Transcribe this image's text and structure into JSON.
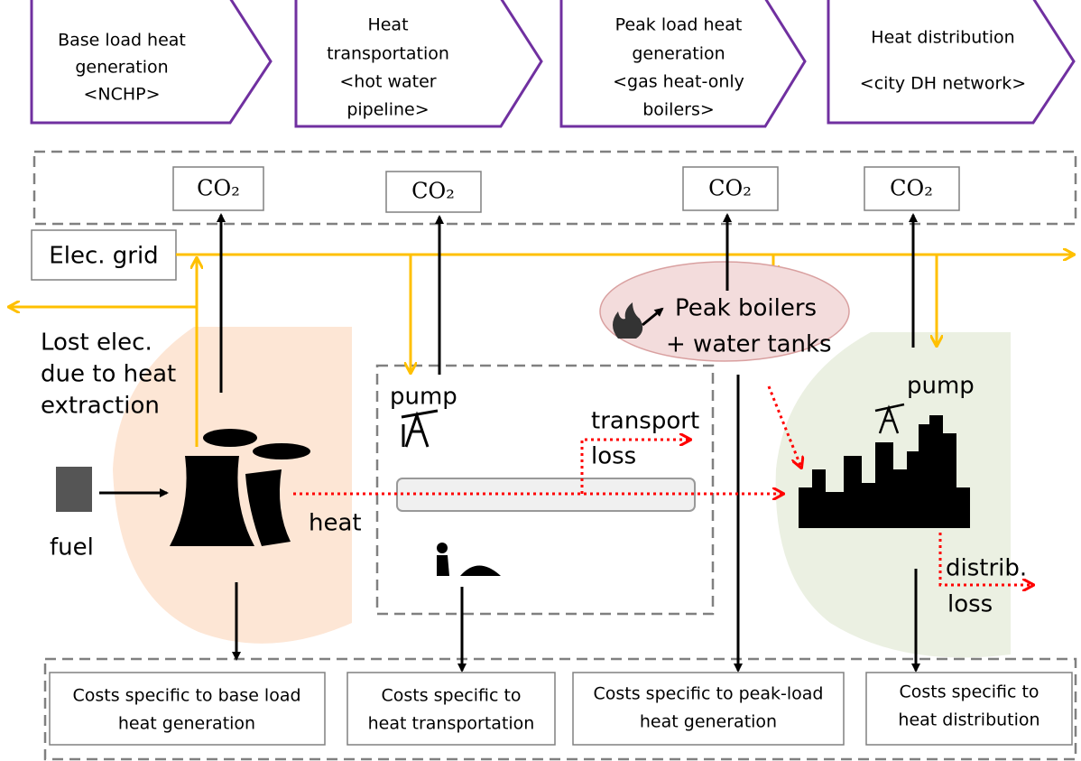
{
  "stages": [
    {
      "lines": [
        "Base load heat",
        "generation",
        "<NCHP>"
      ]
    },
    {
      "lines": [
        "Heat",
        "transportation",
        "<hot water",
        "pipeline>"
      ]
    },
    {
      "lines": [
        "Peak load heat",
        "generation",
        "<gas heat-only",
        "boilers>"
      ]
    },
    {
      "lines": [
        "Heat distribution",
        "<city DH network>"
      ]
    }
  ],
  "emissions": [
    "CO₂",
    "CO₂",
    "CO₂",
    "CO₂"
  ],
  "elec_grid": "Elec. grid",
  "lost_elec": [
    "Lost elec.",
    "due to heat",
    "extraction"
  ],
  "fuel": "fuel",
  "heat": "heat",
  "pump_transport": "pump",
  "transport_loss": [
    "transport",
    "loss"
  ],
  "peak_boilers": [
    "Peak boilers",
    "+ water tanks"
  ],
  "pump_distribution": "pump",
  "distrib_loss": [
    "distrib.",
    "loss"
  ],
  "costs": [
    {
      "lines": [
        "Costs specific to base load",
        "heat generation"
      ]
    },
    {
      "lines": [
        "Costs specific to",
        "heat transportation"
      ]
    },
    {
      "lines": [
        "Costs specific to peak-load",
        "heat generation"
      ]
    },
    {
      "lines": [
        "Costs specific to",
        "heat distribution"
      ]
    }
  ]
}
